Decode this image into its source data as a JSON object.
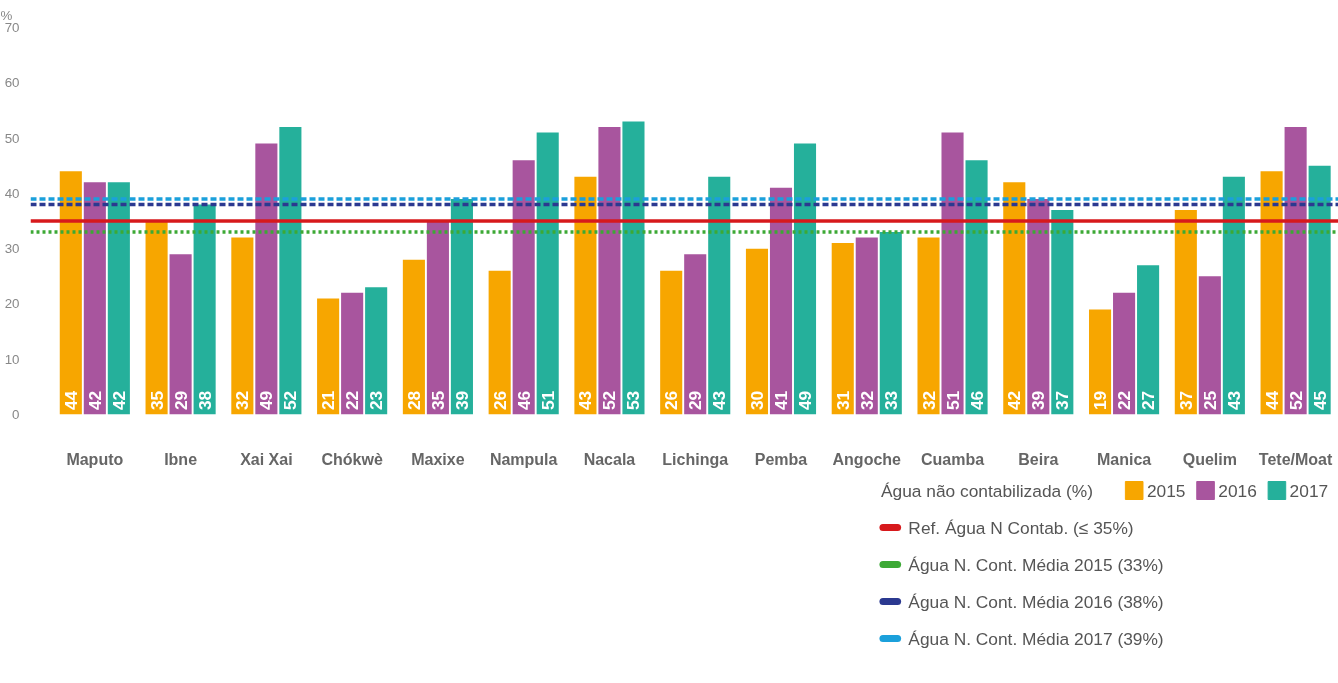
{
  "chart_data": {
    "type": "bar",
    "ylabel": "%",
    "legend_title": "Água não contabilizada (%)",
    "categories": [
      "Maputo",
      "Ibne",
      "Xai Xai",
      "Chókwè",
      "Maxixe",
      "Nampula",
      "Nacala",
      "Lichinga",
      "Pemba",
      "Angoche",
      "Cuamba",
      "Beira",
      "Manica",
      "Quelim",
      "Tete/Moat"
    ],
    "series": [
      {
        "name": "2015",
        "color": "#f7a600",
        "values": [
          44,
          35,
          32,
          21,
          28,
          26,
          43,
          26,
          30,
          31,
          32,
          42,
          19,
          37,
          44
        ]
      },
      {
        "name": "2016",
        "color": "#a8559e",
        "values": [
          42,
          29,
          49,
          22,
          35,
          46,
          52,
          29,
          41,
          32,
          51,
          39,
          22,
          25,
          52
        ]
      },
      {
        "name": "2017",
        "color": "#25b09b",
        "values": [
          42,
          38,
          52,
          23,
          39,
          51,
          53,
          43,
          49,
          33,
          46,
          37,
          27,
          43,
          45
        ]
      }
    ],
    "ylim": [
      0,
      70
    ],
    "yticks": [
      0,
      10,
      20,
      30,
      40,
      50,
      60,
      70
    ],
    "ref_lines": [
      {
        "axis": "y",
        "value": 35,
        "label": "Ref. Água N Contab. (≤ 35%)",
        "color": "#d7191c",
        "line_style": "solid"
      },
      {
        "axis": "y",
        "value": 33,
        "label": "Água N. Cont. Média 2015 (33%)",
        "color": "#3ca935",
        "line_style": "dotted"
      },
      {
        "axis": "y",
        "value": 38,
        "label": "Água N. Cont. Média 2016 (38%)",
        "color": "#2b3990",
        "line_style": "dashed"
      },
      {
        "axis": "y",
        "value": 39,
        "label": "Água N. Cont. Média 2017 (39%)",
        "color": "#1ba0db",
        "line_style": "dashed"
      }
    ],
    "data_labels": true,
    "grid": false,
    "legend": "bottom right"
  }
}
